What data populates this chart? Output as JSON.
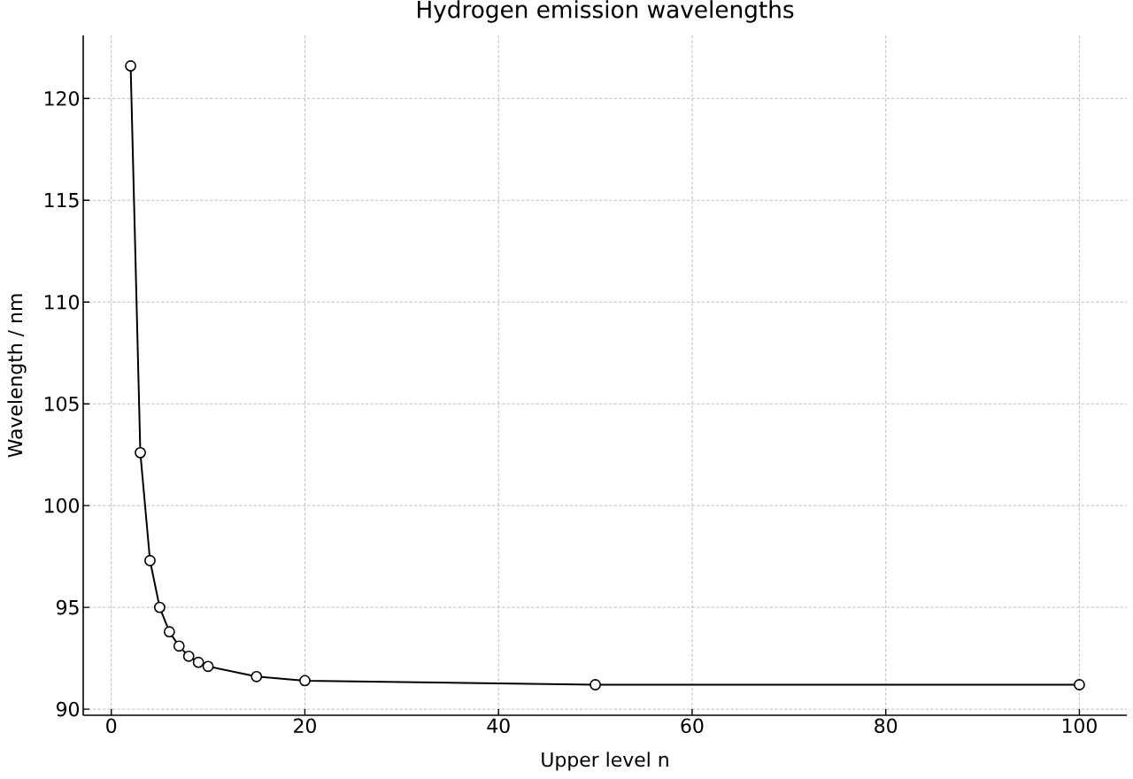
{
  "chart_data": {
    "type": "line",
    "title": "Hydrogen emission wavelengths",
    "xlabel": "Upper level n",
    "ylabel": "Wavelength / nm",
    "x": [
      2,
      3,
      4,
      5,
      6,
      7,
      8,
      9,
      10,
      15,
      20,
      50,
      100
    ],
    "values": [
      121.6,
      102.6,
      97.3,
      95.0,
      93.8,
      93.1,
      92.6,
      92.3,
      92.1,
      91.6,
      91.4,
      91.2,
      91.2
    ],
    "color": "#000000",
    "xlim": [
      -2.9,
      104.9
    ],
    "ylim": [
      89.7,
      123.1
    ],
    "xticks": [
      0,
      20,
      40,
      60,
      80,
      100
    ],
    "yticks": [
      90,
      95,
      100,
      105,
      110,
      115,
      120
    ],
    "grid": true,
    "marker": "circle",
    "line_style": "solid"
  }
}
